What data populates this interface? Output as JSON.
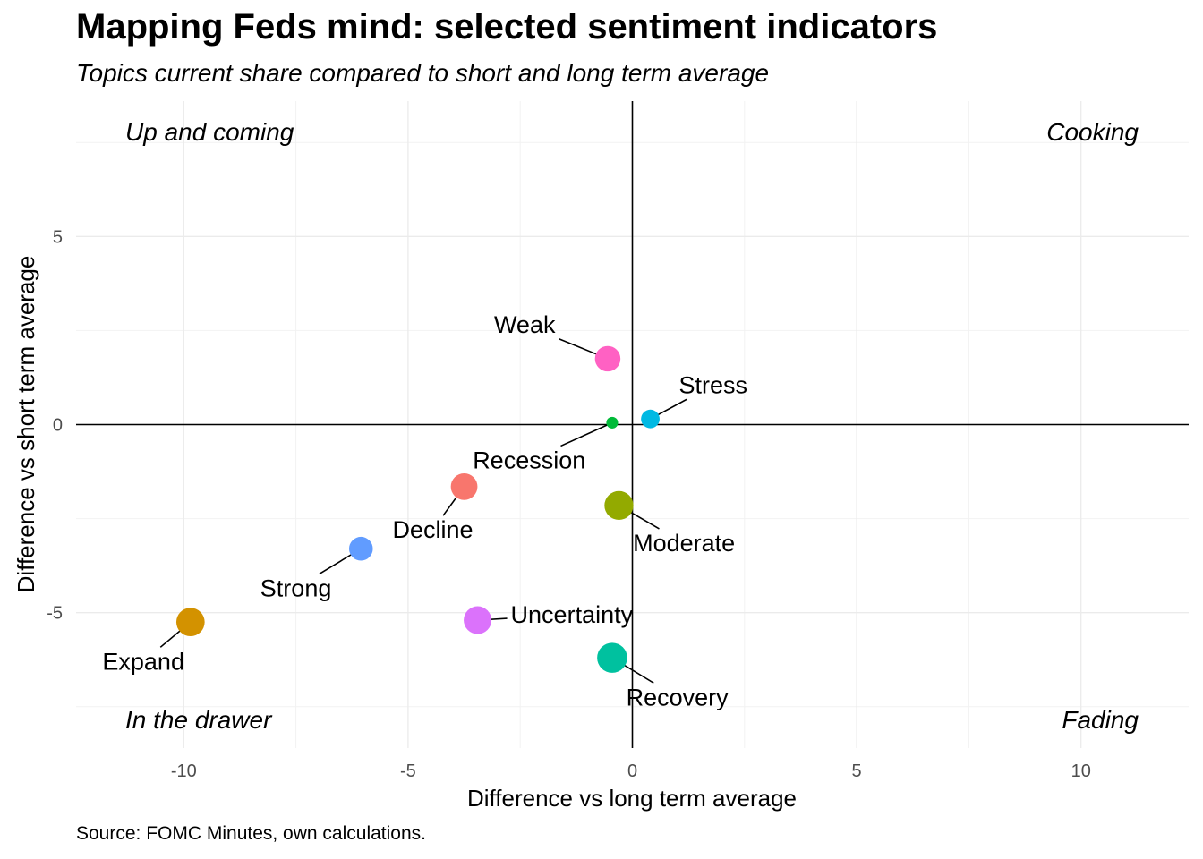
{
  "title": "Mapping Feds mind: selected sentiment indicators",
  "subtitle": "Topics current share compared to short and long term average",
  "caption": "Source: FOMC Minutes, own calculations.",
  "chart_data": {
    "type": "scatter",
    "xlabel": "Difference vs long term average",
    "ylabel": "Difference vs short term average",
    "xlim": [
      -12.4,
      12.4
    ],
    "ylim": [
      -8.6,
      8.6
    ],
    "x_ticks": [
      -10,
      -5,
      0,
      5,
      10
    ],
    "y_ticks": [
      -5,
      0,
      5
    ],
    "grid": true,
    "legend": "none",
    "quadrant_labels": [
      {
        "text": "Up and coming",
        "position": "top-left"
      },
      {
        "text": "Cooking",
        "position": "top-right"
      },
      {
        "text": "In the drawer",
        "position": "bottom-left"
      },
      {
        "text": "Fading",
        "position": "bottom-right"
      }
    ],
    "points": [
      {
        "label": "Weak",
        "x": -0.55,
        "y": 1.75,
        "size": 3.2,
        "color": "#FF61C3",
        "label_x": -2.4,
        "label_y": 2.65
      },
      {
        "label": "Stress",
        "x": 0.4,
        "y": 0.15,
        "size": 2.0,
        "color": "#00B9E3",
        "label_x": 1.8,
        "label_y": 1.05
      },
      {
        "label": "Recession",
        "x": -0.45,
        "y": 0.05,
        "size": 0.8,
        "color": "#00BA38",
        "label_x": -2.3,
        "label_y": -0.95
      },
      {
        "label": "Decline",
        "x": -3.75,
        "y": -1.65,
        "size": 3.4,
        "color": "#F8766D",
        "label_x": -4.45,
        "label_y": -2.8
      },
      {
        "label": "Moderate",
        "x": -0.3,
        "y": -2.15,
        "size": 3.8,
        "color": "#93AA00",
        "label_x": 1.15,
        "label_y": -3.15
      },
      {
        "label": "Strong",
        "x": -6.05,
        "y": -3.3,
        "size": 2.9,
        "color": "#619CFF",
        "label_x": -7.5,
        "label_y": -4.35
      },
      {
        "label": "Uncertainty",
        "x": -3.45,
        "y": -5.2,
        "size": 3.6,
        "color": "#DB72FB",
        "label_x": -1.35,
        "label_y": -5.05
      },
      {
        "label": "Expand",
        "x": -9.85,
        "y": -5.25,
        "size": 3.7,
        "color": "#D39200",
        "label_x": -10.9,
        "label_y": -6.3
      },
      {
        "label": "Recovery",
        "x": -0.45,
        "y": -6.2,
        "size": 4.0,
        "color": "#00C19F",
        "label_x": 1.0,
        "label_y": -7.25
      }
    ]
  }
}
